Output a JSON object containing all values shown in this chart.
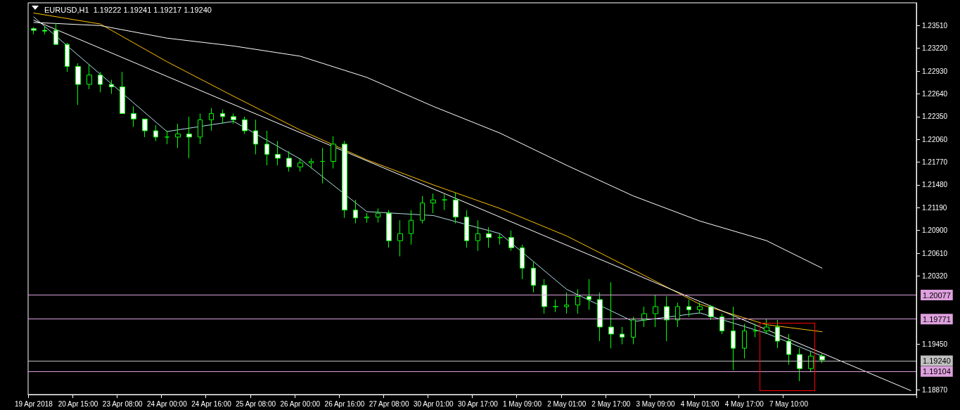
{
  "chart_data": {
    "type": "candlestick",
    "title": "EURUSD,H1  1.19222 1.19241 1.19217 1.19240",
    "categories": [
      "19 Apr 2018",
      null,
      null,
      null,
      "20 Apr 15:00",
      null,
      null,
      null,
      "23 Apr 08:00",
      null,
      null,
      null,
      "24 Apr 00:00",
      null,
      null,
      null,
      "24 Apr 16:00",
      null,
      null,
      null,
      "25 Apr 08:00",
      null,
      null,
      null,
      "26 Apr 00:00",
      null,
      null,
      null,
      "26 Apr 16:00",
      null,
      null,
      null,
      "27 Apr 08:00",
      null,
      null,
      null,
      "30 Apr 01:00",
      null,
      null,
      null,
      "30 Apr 17:00",
      null,
      null,
      null,
      "1 May 09:00",
      null,
      null,
      null,
      "2 May 01:00",
      null,
      null,
      null,
      "2 May 17:00",
      null,
      null,
      null,
      "3 May 09:00",
      null,
      null,
      null,
      "4 May 01:00",
      null,
      null,
      null,
      "4 May 17:00",
      null,
      null,
      null,
      "7 May 10:00",
      null,
      null,
      null,
      null,
      null,
      null,
      null,
      null,
      null,
      null,
      null
    ],
    "series": [
      {
        "color": "#00ff00",
        "ohlc": [
          [
            1.2347,
            1.2349,
            1.234,
            1.2345
          ],
          [
            1.2345,
            1.235,
            1.234,
            1.2344
          ],
          [
            1.2345,
            1.2354,
            1.2327,
            1.2327
          ],
          [
            1.2327,
            1.2329,
            1.2292,
            1.2299
          ],
          [
            1.2299,
            1.2303,
            1.225,
            1.2276
          ],
          [
            1.2276,
            1.2301,
            1.227,
            1.2288
          ],
          [
            1.2288,
            1.2292,
            1.2266,
            1.2276
          ],
          [
            1.2276,
            1.2282,
            1.2264,
            1.2273
          ],
          [
            1.2273,
            1.2292,
            1.2239,
            1.2239
          ],
          [
            1.2239,
            1.2248,
            1.2222,
            1.2232
          ],
          [
            1.2232,
            1.2232,
            1.2209,
            1.2217
          ],
          [
            1.2217,
            1.2224,
            1.2204,
            1.2209
          ],
          [
            1.2209,
            1.2217,
            1.22,
            1.2209
          ],
          [
            1.2209,
            1.2226,
            1.2195,
            1.2213
          ],
          [
            1.2213,
            1.2235,
            1.2182,
            1.2209
          ],
          [
            1.2209,
            1.2239,
            1.22,
            1.2231
          ],
          [
            1.2231,
            1.2246,
            1.2217,
            1.2239
          ],
          [
            1.2239,
            1.2244,
            1.2226,
            1.2235
          ],
          [
            1.2235,
            1.2239,
            1.2226,
            1.2231
          ],
          [
            1.2231,
            1.2235,
            1.2213,
            1.2217
          ],
          [
            1.2217,
            1.2231,
            1.2187,
            1.22
          ],
          [
            1.22,
            1.2217,
            1.2173,
            1.2187
          ],
          [
            1.2187,
            1.2204,
            1.2173,
            1.2182
          ],
          [
            1.2182,
            1.2191,
            1.2165,
            1.2171
          ],
          [
            1.2171,
            1.2182,
            1.2165,
            1.2176
          ],
          [
            1.2176,
            1.2182,
            1.2169,
            1.2178
          ],
          [
            1.2178,
            1.2195,
            1.215,
            1.2178
          ],
          [
            1.2178,
            1.221,
            1.2169,
            1.22
          ],
          [
            1.22,
            1.2204,
            1.2106,
            1.2116
          ],
          [
            1.2116,
            1.2129,
            1.2099,
            1.2106
          ],
          [
            1.2106,
            1.2112,
            1.21,
            1.2107
          ],
          [
            1.2107,
            1.2118,
            1.21,
            1.2112
          ],
          [
            1.2112,
            1.2116,
            1.2068,
            1.2077
          ],
          [
            1.2077,
            1.2103,
            1.2057,
            1.2086
          ],
          [
            1.2086,
            1.2116,
            1.2072,
            1.2103
          ],
          [
            1.2103,
            1.2134,
            1.2099,
            1.2125
          ],
          [
            1.2125,
            1.2137,
            1.2112,
            1.2129
          ],
          [
            1.2129,
            1.2136,
            1.2116,
            1.2129
          ],
          [
            1.2129,
            1.2138,
            1.2099,
            1.2107
          ],
          [
            1.2107,
            1.2116,
            1.2068,
            1.2077
          ],
          [
            1.2077,
            1.2103,
            1.2064,
            1.2086
          ],
          [
            1.2086,
            1.2094,
            1.2068,
            1.2081
          ],
          [
            1.2081,
            1.2086,
            1.2072,
            1.2081
          ],
          [
            1.2081,
            1.209,
            1.2064,
            1.2068
          ],
          [
            1.2068,
            1.2072,
            1.2028,
            1.2042
          ],
          [
            1.2042,
            1.205,
            1.2011,
            1.202
          ],
          [
            1.202,
            1.2028,
            1.1984,
            1.1993
          ],
          [
            1.1993,
            1.2002,
            1.1986,
            1.1993
          ],
          [
            1.1993,
            1.2011,
            1.1984,
            1.1995
          ],
          [
            1.1995,
            1.2015,
            1.1984,
            1.2006
          ],
          [
            1.2006,
            1.2028,
            1.1989,
            1.2002
          ],
          [
            1.2002,
            1.2011,
            1.1949,
            1.1967
          ],
          [
            1.1967,
            1.2024,
            1.194,
            1.1958
          ],
          [
            1.1958,
            1.1967,
            1.1945,
            1.1954
          ],
          [
            1.1954,
            1.198,
            1.1945,
            1.1976
          ],
          [
            1.1976,
            1.1993,
            1.1967,
            1.1984
          ],
          [
            1.1984,
            1.2008,
            1.1967,
            1.1993
          ],
          [
            1.1993,
            1.2006,
            1.1949,
            1.1976
          ],
          [
            1.1976,
            1.1998,
            1.1967,
            1.1993
          ],
          [
            1.1993,
            1.2002,
            1.198,
            1.1989
          ],
          [
            1.1989,
            1.1998,
            1.1984,
            1.1993
          ],
          [
            1.1993,
            1.1995,
            1.1976,
            1.198
          ],
          [
            1.198,
            1.1984,
            1.1958,
            1.1962
          ],
          [
            1.1962,
            1.1993,
            1.1912,
            1.194
          ],
          [
            1.194,
            1.1971,
            1.1927,
            1.1962
          ],
          [
            1.1962,
            1.1971,
            1.1954,
            1.1962
          ],
          [
            1.1962,
            1.1977,
            1.1958,
            1.1967
          ],
          [
            1.1967,
            1.1976,
            1.194,
            1.1949
          ],
          [
            1.1949,
            1.1958,
            1.1919,
            1.1932
          ],
          [
            1.1932,
            1.194,
            1.1898,
            1.1914
          ],
          [
            1.1914,
            1.1936,
            1.191,
            1.193
          ],
          [
            1.193,
            1.1933,
            1.1921,
            1.1925
          ],
          null,
          null,
          null,
          null,
          null,
          null,
          null,
          null
        ]
      },
      {
        "type": "line",
        "color": "#b0e0e6",
        "values": [
          1.2362,
          null,
          null,
          null,
          null,
          null,
          1.2289,
          null,
          null,
          null,
          null,
          null,
          1.2216,
          null,
          null,
          null,
          null,
          null,
          1.2229,
          null,
          null,
          null,
          null,
          null,
          1.2181,
          null,
          null,
          null,
          null,
          null,
          1.2114,
          null,
          null,
          null,
          null,
          null,
          1.2109,
          null,
          null,
          null,
          null,
          null,
          1.2086,
          null,
          null,
          null,
          null,
          null,
          1.2015,
          null,
          null,
          null,
          null,
          null,
          1.1974,
          null,
          null,
          null,
          null,
          null,
          1.1985,
          null,
          null,
          null,
          null,
          null,
          1.1959,
          null,
          null,
          null,
          null,
          1.193,
          null,
          null,
          null,
          null,
          null,
          null,
          null,
          null
        ]
      },
      {
        "type": "line",
        "color": "#ffc000",
        "values": [
          1.2367,
          null,
          null,
          null,
          null,
          null,
          1.2353,
          null,
          null,
          null,
          null,
          null,
          1.2305,
          null,
          null,
          null,
          null,
          null,
          1.2261,
          null,
          null,
          null,
          null,
          null,
          1.2218,
          null,
          null,
          null,
          null,
          null,
          1.218,
          null,
          null,
          null,
          null,
          null,
          1.2148,
          null,
          null,
          null,
          null,
          null,
          1.2118,
          null,
          null,
          null,
          null,
          null,
          1.2083,
          null,
          null,
          null,
          null,
          null,
          1.204,
          null,
          null,
          null,
          null,
          null,
          1.1996,
          null,
          null,
          null,
          null,
          null,
          1.197,
          null,
          null,
          null,
          null,
          1.1961,
          null,
          null,
          null,
          null,
          null,
          null,
          null,
          null
        ]
      },
      {
        "type": "line",
        "color": "#ffffff",
        "values": [
          1.2355,
          null,
          null,
          null,
          null,
          null,
          1.2351,
          null,
          null,
          null,
          null,
          null,
          1.2335,
          null,
          null,
          null,
          null,
          null,
          1.2325,
          null,
          null,
          null,
          null,
          null,
          1.2312,
          null,
          null,
          null,
          null,
          null,
          1.2285,
          null,
          null,
          null,
          null,
          null,
          1.2248,
          null,
          null,
          null,
          null,
          null,
          1.2214,
          null,
          null,
          null,
          null,
          null,
          1.2173,
          null,
          null,
          null,
          null,
          null,
          1.2134,
          null,
          null,
          null,
          null,
          null,
          1.2102,
          null,
          null,
          null,
          null,
          null,
          1.2077,
          null,
          null,
          null,
          null,
          1.2042,
          null,
          null,
          null,
          null,
          null,
          null,
          null,
          null
        ]
      },
      {
        "type": "line",
        "color": "#ffffff",
        "values": [
          1.2358,
          null,
          null,
          null,
          null,
          null,
          null,
          null,
          null,
          null,
          null,
          null,
          null,
          null,
          null,
          null,
          null,
          null,
          null,
          null,
          null,
          null,
          null,
          null,
          null,
          null,
          null,
          null,
          null,
          null,
          null,
          null,
          null,
          null,
          null,
          null,
          null,
          null,
          null,
          null,
          null,
          null,
          null,
          null,
          null,
          null,
          null,
          null,
          null,
          null,
          null,
          null,
          null,
          null,
          null,
          null,
          null,
          null,
          null,
          null,
          null,
          null,
          null,
          null,
          null,
          null,
          null,
          null,
          null,
          null,
          null,
          null,
          null,
          null,
          null,
          null,
          null,
          null,
          null,
          1.1886
        ]
      }
    ],
    "ylim": [
      1.1881,
      1.238
    ],
    "yticks": [
      {
        "value": 1.1887,
        "label": "1.18870"
      },
      {
        "value": 1.1945,
        "label": "1.19450"
      },
      {
        "value": 1.2032,
        "label": "1.20320"
      },
      {
        "value": 1.2061,
        "label": "1.20610"
      },
      {
        "value": 1.209,
        "label": "1.20900"
      },
      {
        "value": 1.2119,
        "label": "1.21190"
      },
      {
        "value": 1.2148,
        "label": "1.21480"
      },
      {
        "value": 1.2177,
        "label": "1.21770"
      },
      {
        "value": 1.2206,
        "label": "1.22060"
      },
      {
        "value": 1.2235,
        "label": "1.22350"
      },
      {
        "value": 1.2264,
        "label": "1.22640"
      },
      {
        "value": 1.2293,
        "label": "1.22930"
      },
      {
        "value": 1.2322,
        "label": "1.23220"
      },
      {
        "value": 1.2351,
        "label": "1.23510"
      }
    ],
    "ref_lines": [
      {
        "axis": "y",
        "value": 1.20077,
        "label": "1.20077",
        "color": "#dda0dd"
      },
      {
        "axis": "y",
        "value": 1.19771,
        "label": "1.19771",
        "color": "#dda0dd"
      },
      {
        "axis": "y",
        "value": 1.1924,
        "label": "1.19240",
        "color": "#c0c0c0"
      },
      {
        "axis": "y",
        "value": 1.19104,
        "label": "1.19104",
        "color": "#dda0dd"
      }
    ],
    "grid": false
  }
}
